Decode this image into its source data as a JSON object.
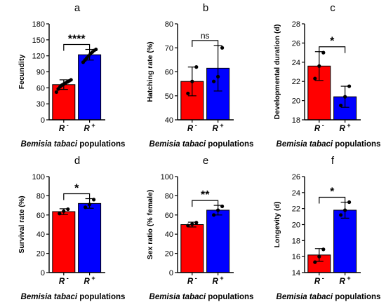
{
  "colors": {
    "r_minus": "#ff0000",
    "r_plus": "#0000ff",
    "axis": "#000000"
  },
  "chart_data": [
    {
      "type": "bar",
      "panel_label": "a",
      "categories": [
        "R-",
        "R+"
      ],
      "category_labels": [
        {
          "main": "R",
          "sup": "-"
        },
        {
          "main": "R",
          "sup": "+"
        }
      ],
      "values": [
        66,
        122
      ],
      "errors": [
        9,
        10
      ],
      "points": [
        [
          52,
          58,
          62,
          65,
          67,
          69,
          71,
          73,
          75
        ],
        [
          108,
          112,
          116,
          120,
          124,
          127,
          130,
          132
        ]
      ],
      "ylabel": "Fecundity",
      "xlabel": "Bemisia tabaci populations",
      "ylim": [
        0,
        180
      ],
      "yticks": [
        0,
        30,
        60,
        90,
        120,
        150,
        180
      ],
      "significance": "****"
    },
    {
      "type": "bar",
      "panel_label": "b",
      "categories": [
        "R-",
        "R+"
      ],
      "category_labels": [
        {
          "main": "R",
          "sup": "-"
        },
        {
          "main": "R",
          "sup": "+"
        }
      ],
      "values": [
        56,
        61.5
      ],
      "errors": [
        6,
        9.5
      ],
      "points": [
        [
          51,
          56,
          62
        ],
        [
          56,
          58,
          70
        ]
      ],
      "ylabel": "Hatching rate (%)",
      "xlabel": "Bemisia tabaci populations",
      "ylim": [
        40,
        80
      ],
      "yticks": [
        40,
        50,
        60,
        70,
        80
      ],
      "significance": "ns"
    },
    {
      "type": "bar",
      "panel_label": "c",
      "categories": [
        "R-",
        "R+"
      ],
      "category_labels": [
        {
          "main": "R",
          "sup": "-"
        },
        {
          "main": "R",
          "sup": "+"
        }
      ],
      "values": [
        23.6,
        20.4
      ],
      "errors": [
        1.5,
        1.1
      ],
      "points": [
        [
          22.3,
          23.6,
          25.0
        ],
        [
          19.5,
          20.4,
          21.5
        ]
      ],
      "ylabel": "Developmental duration (d)",
      "xlabel": "Bemisia tabaci populations",
      "ylim": [
        18,
        28
      ],
      "yticks": [
        18,
        20,
        22,
        24,
        26,
        28
      ],
      "significance": "*"
    },
    {
      "type": "bar",
      "panel_label": "d",
      "categories": [
        "R-",
        "R+"
      ],
      "category_labels": [
        {
          "main": "R",
          "sup": "-"
        },
        {
          "main": "R",
          "sup": "+"
        }
      ],
      "values": [
        63.5,
        72
      ],
      "errors": [
        3,
        5
      ],
      "points": [
        [
          61.5,
          64,
          66
        ],
        [
          68,
          71,
          76
        ]
      ],
      "ylabel": "Survival rate (%)",
      "xlabel": "Bemisia tabaci populations",
      "ylim": [
        0,
        100
      ],
      "yticks": [
        0,
        20,
        40,
        60,
        80,
        100
      ],
      "significance": "*"
    },
    {
      "type": "bar",
      "panel_label": "e",
      "categories": [
        "R-",
        "R+"
      ],
      "category_labels": [
        {
          "main": "R",
          "sup": "-"
        },
        {
          "main": "R",
          "sup": "+"
        }
      ],
      "values": [
        50,
        65
      ],
      "errors": [
        2.5,
        5
      ],
      "points": [
        [
          49,
          50.5,
          52
        ],
        [
          60,
          65,
          69
        ]
      ],
      "ylabel": "Sex ratio (% female)",
      "xlabel": "Bemisia tabaci populations",
      "ylim": [
        0,
        100
      ],
      "yticks": [
        0,
        20,
        40,
        60,
        80,
        100
      ],
      "significance": "**"
    },
    {
      "type": "bar",
      "panel_label": "f",
      "categories": [
        "R-",
        "R+"
      ],
      "category_labels": [
        {
          "main": "R",
          "sup": "-"
        },
        {
          "main": "R",
          "sup": "+"
        }
      ],
      "values": [
        16.2,
        21.8
      ],
      "errors": [
        0.8,
        1.0
      ],
      "points": [
        [
          15.3,
          16.0,
          16.9
        ],
        [
          21.2,
          21.8,
          22.8
        ]
      ],
      "ylabel": "Longevity (d)",
      "xlabel": "Bemisia tabaci populations",
      "ylim": [
        14,
        26
      ],
      "yticks": [
        14,
        16,
        18,
        20,
        22,
        24,
        26
      ],
      "significance": "*"
    }
  ]
}
